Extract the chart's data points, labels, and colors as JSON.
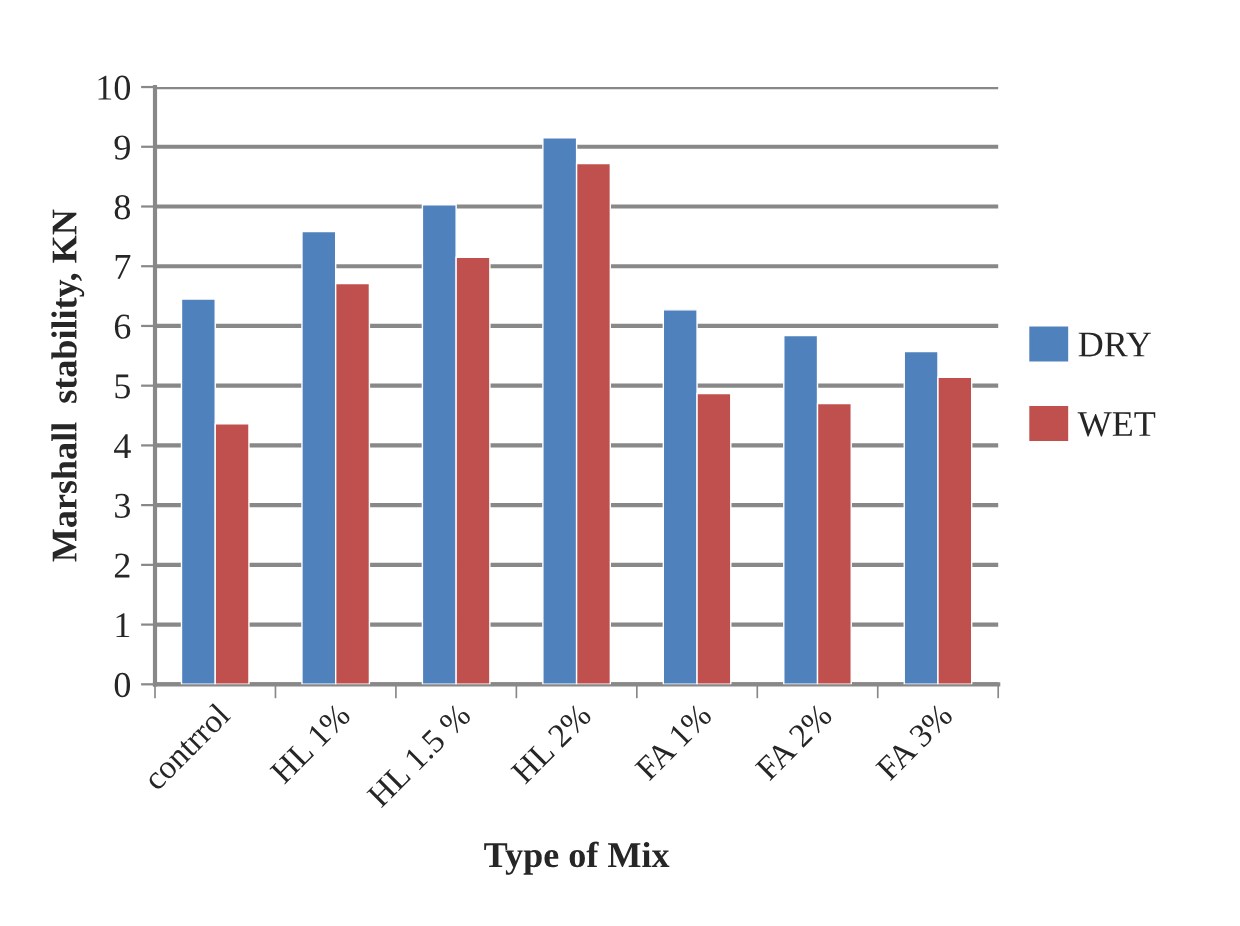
{
  "chart_data": {
    "type": "bar",
    "xlabel": "Type of Mix",
    "ylabel": "Marshall  stability, KN",
    "categories": [
      "contrrol",
      "HL 1%",
      "HL 1.5 %",
      "HL 2%",
      "FA 1%",
      "FA 2%",
      "FA 3%"
    ],
    "series": [
      {
        "name": "DRY",
        "color": "#4f81bd",
        "values": [
          6.45,
          7.58,
          8.03,
          9.15,
          6.27,
          5.84,
          5.57
        ]
      },
      {
        "name": "WET",
        "color": "#c0504d",
        "values": [
          4.36,
          6.71,
          7.15,
          8.72,
          4.87,
          4.7,
          5.14
        ]
      }
    ],
    "ylim": [
      0,
      10
    ],
    "yticks": [
      0,
      1,
      2,
      3,
      4,
      5,
      6,
      7,
      8,
      9,
      10
    ],
    "grid": "y",
    "legend": "right"
  }
}
